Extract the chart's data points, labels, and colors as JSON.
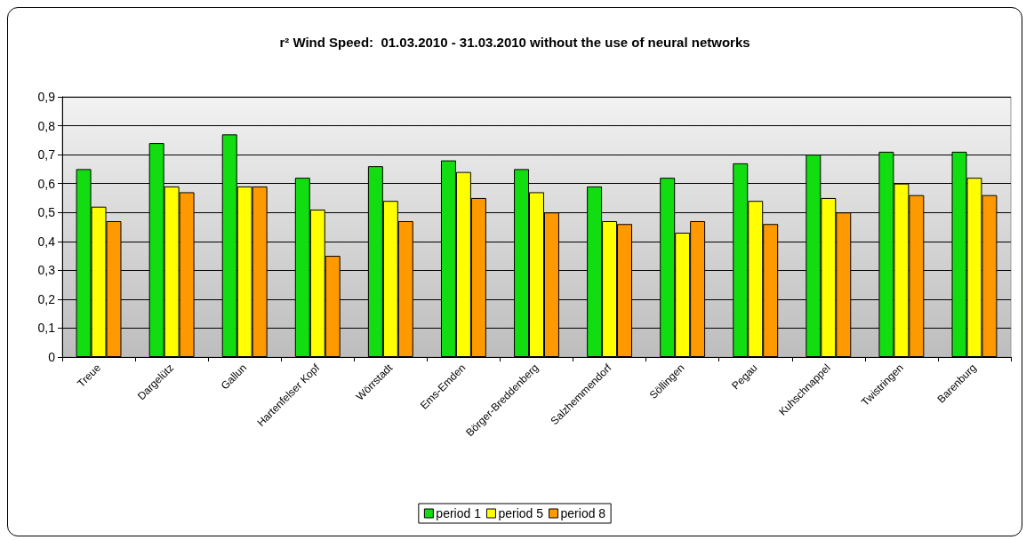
{
  "chart_data": {
    "type": "bar",
    "title": "r² Wind Speed:  01.03.2010 - 31.03.2010 without the use of neural networks",
    "categories": [
      "Treue",
      "Dargelütz",
      "Gallun",
      "Hartenfelser Kopf",
      "Wörrstadt",
      "Ems-Emden",
      "Börger-Breddenberg",
      "Salzhemmendorf",
      "Söllingen",
      "Pegau",
      "Kuhschnappel",
      "Twistringen",
      "Barenburg"
    ],
    "series": [
      {
        "name": "period 1",
        "color": "#11dd11",
        "values": [
          0.65,
          0.74,
          0.77,
          0.62,
          0.66,
          0.68,
          0.65,
          0.59,
          0.62,
          0.67,
          0.7,
          0.71,
          0.71
        ]
      },
      {
        "name": "period 5",
        "color": "#ffff00",
        "values": [
          0.52,
          0.59,
          0.59,
          0.51,
          0.54,
          0.64,
          0.57,
          0.47,
          0.43,
          0.54,
          0.55,
          0.6,
          0.62
        ]
      },
      {
        "name": "period 8",
        "color": "#ff9900",
        "values": [
          0.47,
          0.57,
          0.59,
          0.35,
          0.47,
          0.55,
          0.5,
          0.46,
          0.47,
          0.46,
          0.5,
          0.56,
          0.56
        ]
      }
    ],
    "ylim": [
      0,
      0.9
    ],
    "yticks": [
      0,
      {
        "value": 0.1,
        "label": "0,1"
      },
      {
        "value": 0.2,
        "label": "0,2"
      },
      {
        "value": 0.3,
        "label": "0,3"
      },
      {
        "value": 0.4,
        "label": "0,4"
      },
      {
        "value": 0.5,
        "label": "0,5"
      },
      {
        "value": 0.6,
        "label": "0,6"
      },
      {
        "value": 0.7,
        "label": "0,7"
      },
      {
        "value": 0.8,
        "label": "0,8"
      },
      {
        "value": 0.9,
        "label": "0,9"
      }
    ],
    "grid": "y",
    "legend": "bottom"
  }
}
